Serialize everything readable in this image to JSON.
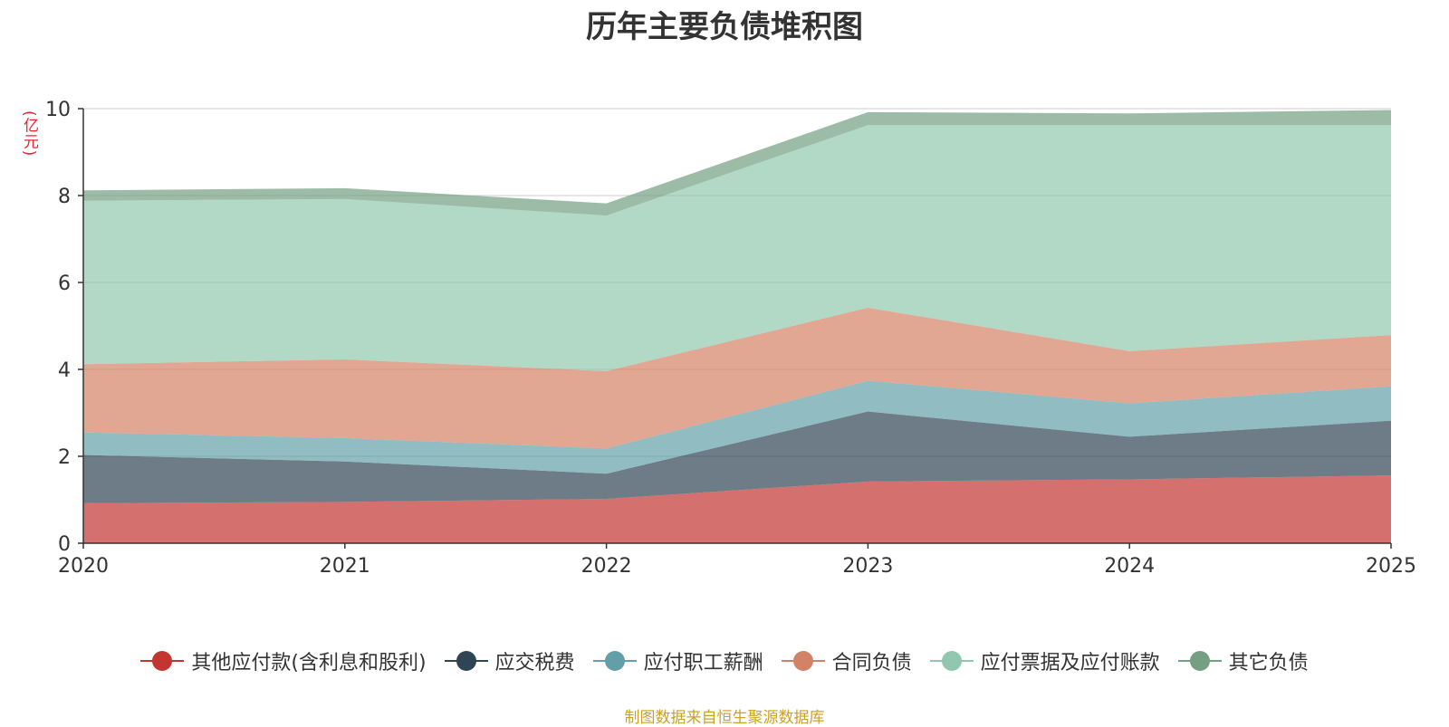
{
  "chart_data": {
    "type": "area",
    "stacked": true,
    "title": "历年主要负债堆积图",
    "y_unit": "(亿元)",
    "categories": [
      "2020",
      "2021",
      "2022",
      "2023",
      "2024",
      "2025"
    ],
    "ylim": [
      0,
      10
    ],
    "y_ticks": [
      "0",
      "2",
      "4",
      "6",
      "8",
      "10"
    ],
    "grid": true,
    "legend_position": "bottom",
    "series": [
      {
        "name": "其他应付款(含利息和股利)",
        "color": "#c23531",
        "values": [
          0.92,
          0.95,
          1.02,
          1.42,
          1.47,
          1.56
        ]
      },
      {
        "name": "应交税费",
        "color": "#2f4554",
        "values": [
          1.11,
          0.93,
          0.58,
          1.61,
          0.98,
          1.26
        ]
      },
      {
        "name": "应付职工薪酬",
        "color": "#61a0a8",
        "values": [
          0.52,
          0.54,
          0.58,
          0.71,
          0.77,
          0.79
        ]
      },
      {
        "name": "合同负债",
        "color": "#d48265",
        "values": [
          1.57,
          1.81,
          1.78,
          1.68,
          1.2,
          1.18
        ]
      },
      {
        "name": "应付票据及应付账款",
        "color": "#91c7ae",
        "values": [
          3.76,
          3.69,
          3.58,
          4.2,
          5.2,
          4.83
        ]
      },
      {
        "name": "其它负债",
        "color": "#749f83",
        "values": [
          0.24,
          0.25,
          0.28,
          0.3,
          0.27,
          0.35
        ]
      }
    ]
  },
  "source_note": "制图数据来自恒生聚源数据库"
}
